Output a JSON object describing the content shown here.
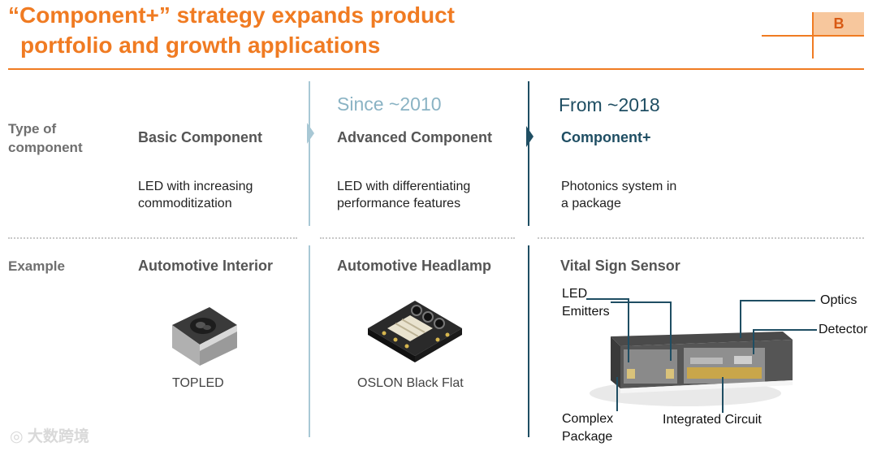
{
  "header": {
    "title_line1": "“Component+” strategy expands product",
    "title_line2": "portfolio and growth applications",
    "badge": "B"
  },
  "eras": {
    "advanced": "Since ~2010",
    "plus": "From ~2018"
  },
  "row_labels": {
    "type_line1": "Type of",
    "type_line2": "component",
    "example": "Example"
  },
  "columns": [
    {
      "heading": "Basic Component",
      "desc_line1": "LED with increasing",
      "desc_line2": "commoditization",
      "example_title": "Automotive Interior",
      "example_caption": "TOPLED"
    },
    {
      "heading": "Advanced Component",
      "desc_line1": "LED with differentiating",
      "desc_line2": "performance features",
      "example_title": "Automotive Headlamp",
      "example_caption": "OSLON Black Flat"
    },
    {
      "heading": "Component+",
      "desc_line1": "Photonics system in",
      "desc_line2": "a package",
      "example_title": "Vital Sign Sensor",
      "example_caption": ""
    }
  ],
  "sensor_labels": {
    "led_line1": "LED",
    "led_line2": "Emitters",
    "optics": "Optics",
    "detector": "Detector",
    "complex_line1": "Complex",
    "complex_line2": "Package",
    "ic": "Integrated Circuit"
  },
  "watermark": "大数跨境",
  "colors": {
    "orange": "#f07b22",
    "badge_fill": "#f7c79d",
    "teal_light": "#a8c8d5",
    "teal_dark": "#1f4e63"
  }
}
